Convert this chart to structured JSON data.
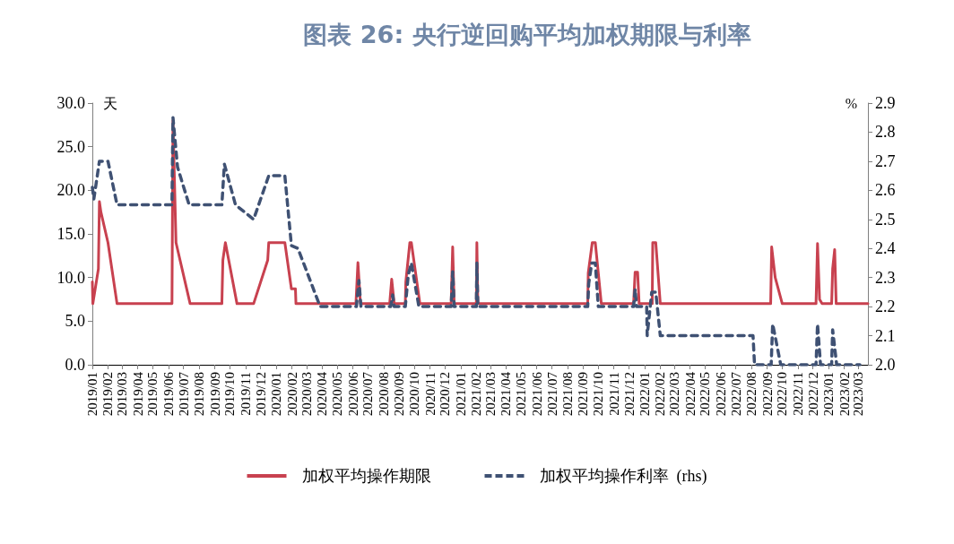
{
  "chart_data": {
    "type": "line",
    "title": "图表 26: 央行逆回购平均加权期限与利率",
    "ylabel": "天",
    "y2label": "%",
    "legend": "bottom",
    "grid": false,
    "marker": "none",
    "xlim": [
      "2019-01-01",
      "2023-03-20"
    ],
    "xticks": [
      {
        "value": "2019-01",
        "label": "2019/01"
      },
      {
        "value": "2019-02",
        "label": "2019/02"
      },
      {
        "value": "2019-03",
        "label": "2019/03"
      },
      {
        "value": "2019-04",
        "label": "2019/04"
      },
      {
        "value": "2019-05",
        "label": "2019/05"
      },
      {
        "value": "2019-06",
        "label": "2019/06"
      },
      {
        "value": "2019-07",
        "label": "2019/07"
      },
      {
        "value": "2019-08",
        "label": "2019/08"
      },
      {
        "value": "2019-09",
        "label": "2019/09"
      },
      {
        "value": "2019-10",
        "label": "2019/10"
      },
      {
        "value": "2019-11",
        "label": "2019/11"
      },
      {
        "value": "2019-12",
        "label": "2019/12"
      },
      {
        "value": "2020-01",
        "label": "2020/01"
      },
      {
        "value": "2020-02",
        "label": "2020/02"
      },
      {
        "value": "2020-03",
        "label": "2020/03"
      },
      {
        "value": "2020-04",
        "label": "2020/04"
      },
      {
        "value": "2020-05",
        "label": "2020/05"
      },
      {
        "value": "2020-06",
        "label": "2020/06"
      },
      {
        "value": "2020-07",
        "label": "2020/07"
      },
      {
        "value": "2020-08",
        "label": "2020/08"
      },
      {
        "value": "2020-09",
        "label": "2020/09"
      },
      {
        "value": "2020-10",
        "label": "2020/10"
      },
      {
        "value": "2020-11",
        "label": "2020/11"
      },
      {
        "value": "2020-12",
        "label": "2020/12"
      },
      {
        "value": "2021-01",
        "label": "2021/01"
      },
      {
        "value": "2021-02",
        "label": "2021/02"
      },
      {
        "value": "2021-03",
        "label": "2021/03"
      },
      {
        "value": "2021-04",
        "label": "2021/04"
      },
      {
        "value": "2021-05",
        "label": "2021/05"
      },
      {
        "value": "2021-06",
        "label": "2021/06"
      },
      {
        "value": "2021-07",
        "label": "2021/07"
      },
      {
        "value": "2021-08",
        "label": "2021/08"
      },
      {
        "value": "2021-09",
        "label": "2021/09"
      },
      {
        "value": "2021-10",
        "label": "2021/10"
      },
      {
        "value": "2021-11",
        "label": "2021/11"
      },
      {
        "value": "2021-12",
        "label": "2021/12"
      },
      {
        "value": "2022-01",
        "label": "2022/01"
      },
      {
        "value": "2022-02",
        "label": "2022/02"
      },
      {
        "value": "2022-03",
        "label": "2022/03"
      },
      {
        "value": "2022-04",
        "label": "2022/04"
      },
      {
        "value": "2022-05",
        "label": "2022/05"
      },
      {
        "value": "2022-06",
        "label": "2022/06"
      },
      {
        "value": "2022-07",
        "label": "2022/07"
      },
      {
        "value": "2022-08",
        "label": "2022/08"
      },
      {
        "value": "2022-09",
        "label": "2022/09"
      },
      {
        "value": "2022-10",
        "label": "2022/10"
      },
      {
        "value": "2022-11",
        "label": "2022/11"
      },
      {
        "value": "2022-12",
        "label": "2022/12"
      },
      {
        "value": "2023-01",
        "label": "2023/01"
      },
      {
        "value": "2023-02",
        "label": "2023/02"
      },
      {
        "value": "2023-03",
        "label": "2023/03"
      }
    ],
    "ylim": [
      0,
      30
    ],
    "yticks": [
      {
        "value": 0,
        "label": "0.0"
      },
      {
        "value": 5,
        "label": "5.0"
      },
      {
        "value": 10,
        "label": "10.0"
      },
      {
        "value": 15,
        "label": "15.0"
      },
      {
        "value": 20,
        "label": "20.0"
      },
      {
        "value": 25,
        "label": "25.0"
      },
      {
        "value": 30,
        "label": "30.0"
      }
    ],
    "y2lim": [
      2.0,
      2.9
    ],
    "y2ticks": [
      {
        "value": 2.0,
        "label": "2.0"
      },
      {
        "value": 2.1,
        "label": "2.1"
      },
      {
        "value": 2.2,
        "label": "2.2"
      },
      {
        "value": 2.3,
        "label": "2.3"
      },
      {
        "value": 2.4,
        "label": "2.4"
      },
      {
        "value": 2.5,
        "label": "2.5"
      },
      {
        "value": 2.6,
        "label": "2.6"
      },
      {
        "value": 2.7,
        "label": "2.7"
      },
      {
        "value": 2.8,
        "label": "2.8"
      },
      {
        "value": 2.9,
        "label": "2.9"
      }
    ],
    "series": [
      {
        "name": "加权平均操作期限",
        "color": "#c8414f",
        "line_style": "solid",
        "x": [
          "2019-01-01",
          "2019-01-02",
          "2019-01-13",
          "2019-01-15",
          "2019-01-18",
          "2019-02-01",
          "2019-02-19",
          "2019-06-08",
          "2019-06-10",
          "2019-06-16",
          "2019-07-14",
          "2019-09-15",
          "2019-09-17",
          "2019-09-22",
          "2019-10-15",
          "2019-11-17",
          "2019-12-15",
          "2019-12-17",
          "2020-01-18",
          "2020-01-31",
          "2020-02-08",
          "2020-02-09",
          "2020-06-07",
          "2020-06-11",
          "2020-06-16",
          "2020-08-13",
          "2020-08-17",
          "2020-08-22",
          "2020-09-13",
          "2020-09-14",
          "2020-09-22",
          "2020-09-25",
          "2020-10-12",
          "2020-12-13",
          "2020-12-16",
          "2020-12-19",
          "2021-02-01",
          "2021-02-02",
          "2021-02-04",
          "2021-09-10",
          "2021-09-11",
          "2021-09-19",
          "2021-09-25",
          "2021-10-07",
          "2021-12-10",
          "2021-12-13",
          "2021-12-18",
          "2021-12-21",
          "2022-01-16",
          "2022-01-17",
          "2022-01-23",
          "2022-02-01",
          "2022-09-08",
          "2022-09-10",
          "2022-09-17",
          "2022-10-01",
          "2022-12-07",
          "2022-12-10",
          "2022-12-14",
          "2022-12-19",
          "2023-01-07",
          "2023-01-09",
          "2023-01-13",
          "2023-01-16",
          "2023-03-20"
        ],
        "values": [
          9.5,
          7,
          11,
          18.7,
          17.5,
          14,
          7,
          7,
          28,
          14,
          7,
          7,
          12,
          14,
          7,
          7,
          12,
          14,
          14,
          8.7,
          8.7,
          7,
          7,
          11.7,
          7,
          7,
          9.8,
          7,
          7,
          9.5,
          14,
          14,
          7,
          7,
          13.5,
          7,
          7,
          14,
          7,
          7,
          10.5,
          14,
          14,
          7,
          7,
          10.6,
          10.6,
          7,
          7,
          14,
          14,
          7,
          7,
          13.5,
          10,
          7,
          7,
          13.9,
          7.5,
          7,
          7,
          11,
          13.2,
          7,
          7
        ]
      },
      {
        "name": "加权平均操作利率  (rhs)",
        "color": "#3f5173",
        "line_style": "dashed",
        "axis": "y2",
        "x": [
          "2019-01-01",
          "2019-01-04",
          "2019-01-15",
          "2019-02-01",
          "2019-02-19",
          "2019-06-08",
          "2019-06-10",
          "2019-06-19",
          "2019-07-12",
          "2019-09-15",
          "2019-09-20",
          "2019-10-12",
          "2019-11-17",
          "2019-12-17",
          "2020-01-18",
          "2020-01-31",
          "2020-02-13",
          "2020-03-28",
          "2020-06-08",
          "2020-06-13",
          "2020-06-17",
          "2020-08-15",
          "2020-08-19",
          "2020-08-22",
          "2020-09-13",
          "2020-09-19",
          "2020-09-25",
          "2020-10-10",
          "2020-12-13",
          "2020-12-16",
          "2020-12-19",
          "2021-02-01",
          "2021-02-02",
          "2021-02-04",
          "2021-09-10",
          "2021-09-12",
          "2021-09-18",
          "2021-09-25",
          "2021-10-01",
          "2021-12-10",
          "2021-12-13",
          "2021-12-16",
          "2022-01-05",
          "2022-01-06",
          "2022-01-15",
          "2022-01-23",
          "2022-02-01",
          "2022-08-04",
          "2022-08-07",
          "2022-09-09",
          "2022-09-12",
          "2022-09-28",
          "2022-12-07",
          "2022-12-10",
          "2022-12-16",
          "2023-01-07",
          "2023-01-09",
          "2023-01-17",
          "2023-03-04"
        ],
        "values": [
          2.61,
          2.57,
          2.7,
          2.7,
          2.55,
          2.55,
          2.85,
          2.68,
          2.55,
          2.55,
          2.69,
          2.55,
          2.5,
          2.65,
          2.65,
          2.41,
          2.4,
          2.2,
          2.2,
          2.29,
          2.2,
          2.2,
          2.24,
          2.2,
          2.2,
          2.31,
          2.35,
          2.2,
          2.2,
          2.32,
          2.2,
          2.2,
          2.35,
          2.2,
          2.2,
          2.28,
          2.35,
          2.35,
          2.2,
          2.2,
          2.26,
          2.2,
          2.2,
          2.1,
          2.25,
          2.25,
          2.1,
          2.1,
          2.0,
          2.0,
          2.14,
          2.0,
          2.0,
          2.14,
          2.0,
          2.0,
          2.12,
          2.0,
          2.0
        ]
      }
    ]
  }
}
